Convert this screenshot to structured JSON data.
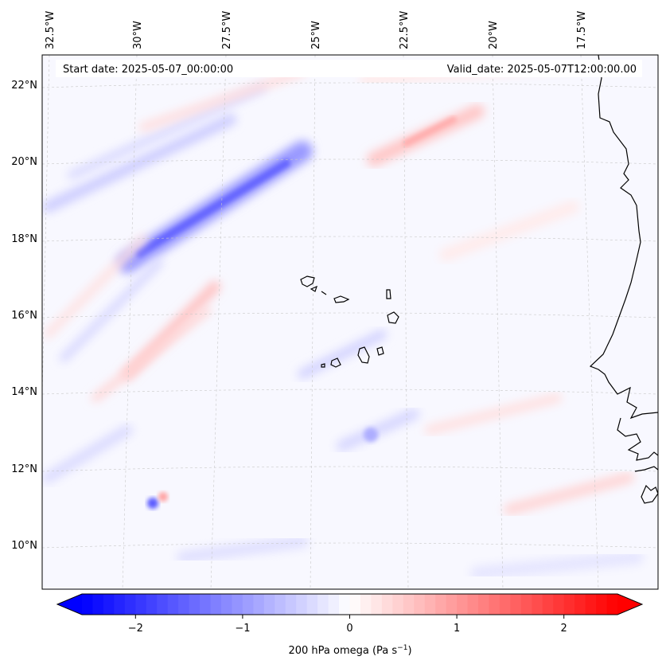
{
  "header": {
    "start_date": "Start date: 2025-05-07_00:00:00",
    "valid_date": "Valid_date: 2025-05-07T12:00:00.00"
  },
  "map": {
    "longitude_labels": [
      "32.5°W",
      "30°W",
      "27.5°W",
      "25°W",
      "22.5°W",
      "20°W",
      "17.5°W"
    ],
    "latitude_labels": [
      "22°N",
      "20°N",
      "18°N",
      "16°N",
      "14°N",
      "12°N",
      "10°N"
    ],
    "gridlines": true,
    "coastline_color": "#000000"
  },
  "colorbar": {
    "label": "200 hPa omega (Pa s",
    "label_superscript": "−1",
    "label_close": ")",
    "ticks": [
      "−2",
      "−1",
      "0",
      "1",
      "2"
    ],
    "tick_values": [
      -2,
      -1,
      0,
      1,
      2
    ],
    "range": [
      -2.5,
      2.5
    ],
    "extend": "both",
    "colormap": "bwr",
    "min_color": "#0000ff",
    "mid_color": "#ffffff",
    "max_color": "#ff0000"
  }
}
